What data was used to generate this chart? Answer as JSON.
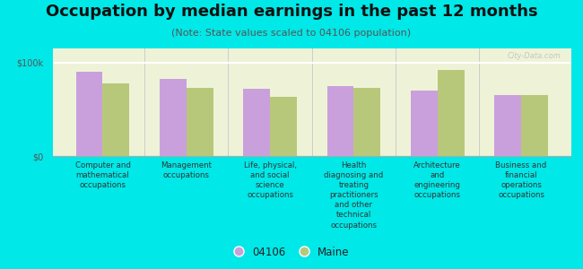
{
  "title": "Occupation by median earnings in the past 12 months",
  "subtitle": "(Note: State values scaled to 04106 population)",
  "background_color": "#00e8e8",
  "plot_bg_color": "#eef3d8",
  "categories": [
    "Computer and\nmathematical\noccupations",
    "Management\noccupations",
    "Life, physical,\nand social\nscience\noccupations",
    "Health\ndiagnosing and\ntreating\npractitioners\nand other\ntechnical\noccupations",
    "Architecture\nand\nengineering\noccupations",
    "Business and\nfinancial\noperations\noccupations"
  ],
  "values_04106": [
    90000,
    82000,
    72000,
    75000,
    70000,
    65000
  ],
  "values_maine": [
    78000,
    73000,
    63000,
    73000,
    92000,
    65000
  ],
  "color_04106": "#c9a0dc",
  "color_maine": "#b8c87a",
  "ylim": [
    0,
    115000
  ],
  "yticks": [
    0,
    100000
  ],
  "ytick_labels": [
    "$0",
    "$100k"
  ],
  "legend_04106": "04106",
  "legend_maine": "Maine",
  "watermark": "City-Data.com",
  "title_fontsize": 13,
  "subtitle_fontsize": 8,
  "tick_fontsize": 7,
  "bar_width": 0.32
}
